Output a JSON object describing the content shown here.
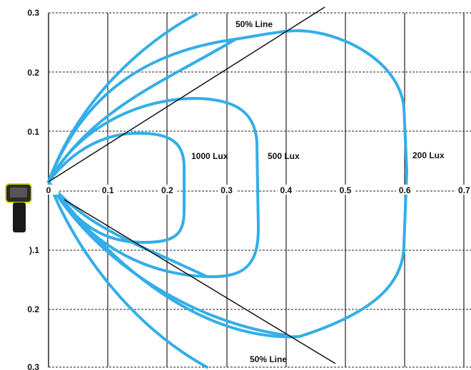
{
  "colors": {
    "contour": "#33aee8",
    "grid": "#222222",
    "line": "#111111",
    "device_body": "#2a2a2a",
    "device_accent": "#e6e600"
  },
  "x_ticks": [
    "0",
    "0.1",
    "0.2",
    "0.3",
    "0.4",
    "0.5",
    "0.6",
    "0.7"
  ],
  "y_ticks_upper": [
    "0.3",
    "0.2",
    "0.1"
  ],
  "y_ticks_lower": [
    ").1",
    "0.2",
    "0.3"
  ],
  "labels": {
    "lux_1000": "1000 Lux",
    "lux_500": "500 Lux",
    "lux_200": "200 Lux",
    "line_top": "50% Line",
    "line_bottom": "50% Line"
  },
  "device_icon": "barcode-scanner-icon"
}
